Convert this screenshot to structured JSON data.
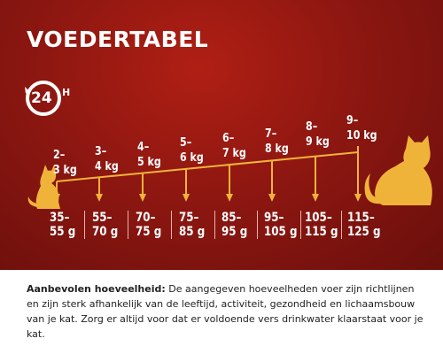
{
  "title": "VOEDERTABEL",
  "badge": {
    "number": "24",
    "unit": "H"
  },
  "weights": [
    "2–\n3 kg",
    "3–\n4 kg",
    "4–\n5 kg",
    "5–\n6 kg",
    "6–\n7 kg",
    "7–\n8 kg",
    "8–\n9 kg",
    "9–\n10 kg"
  ],
  "amounts": [
    "35–\n55 g",
    "55–\n70 g",
    "70–\n75 g",
    "75–\n85 g",
    "85–\n95 g",
    "95–\n105 g",
    "105–\n115 g",
    "115–\n125 g"
  ],
  "note": {
    "label": "Aanbevolen hoeveelheid:",
    "text": " De aangegeven hoeveelheden voer zijn richtlijnen en zijn sterk afhankelijk van de leeftijd, activiteit, gezondheid en lichaamsbouw van je kat. Zorg er altijd voor dat er voldoende vers drinkwater klaarstaat voor je kat."
  },
  "colors": {
    "background": "#8e1711",
    "accent": "#f0b33a",
    "text": "#ffffff"
  }
}
